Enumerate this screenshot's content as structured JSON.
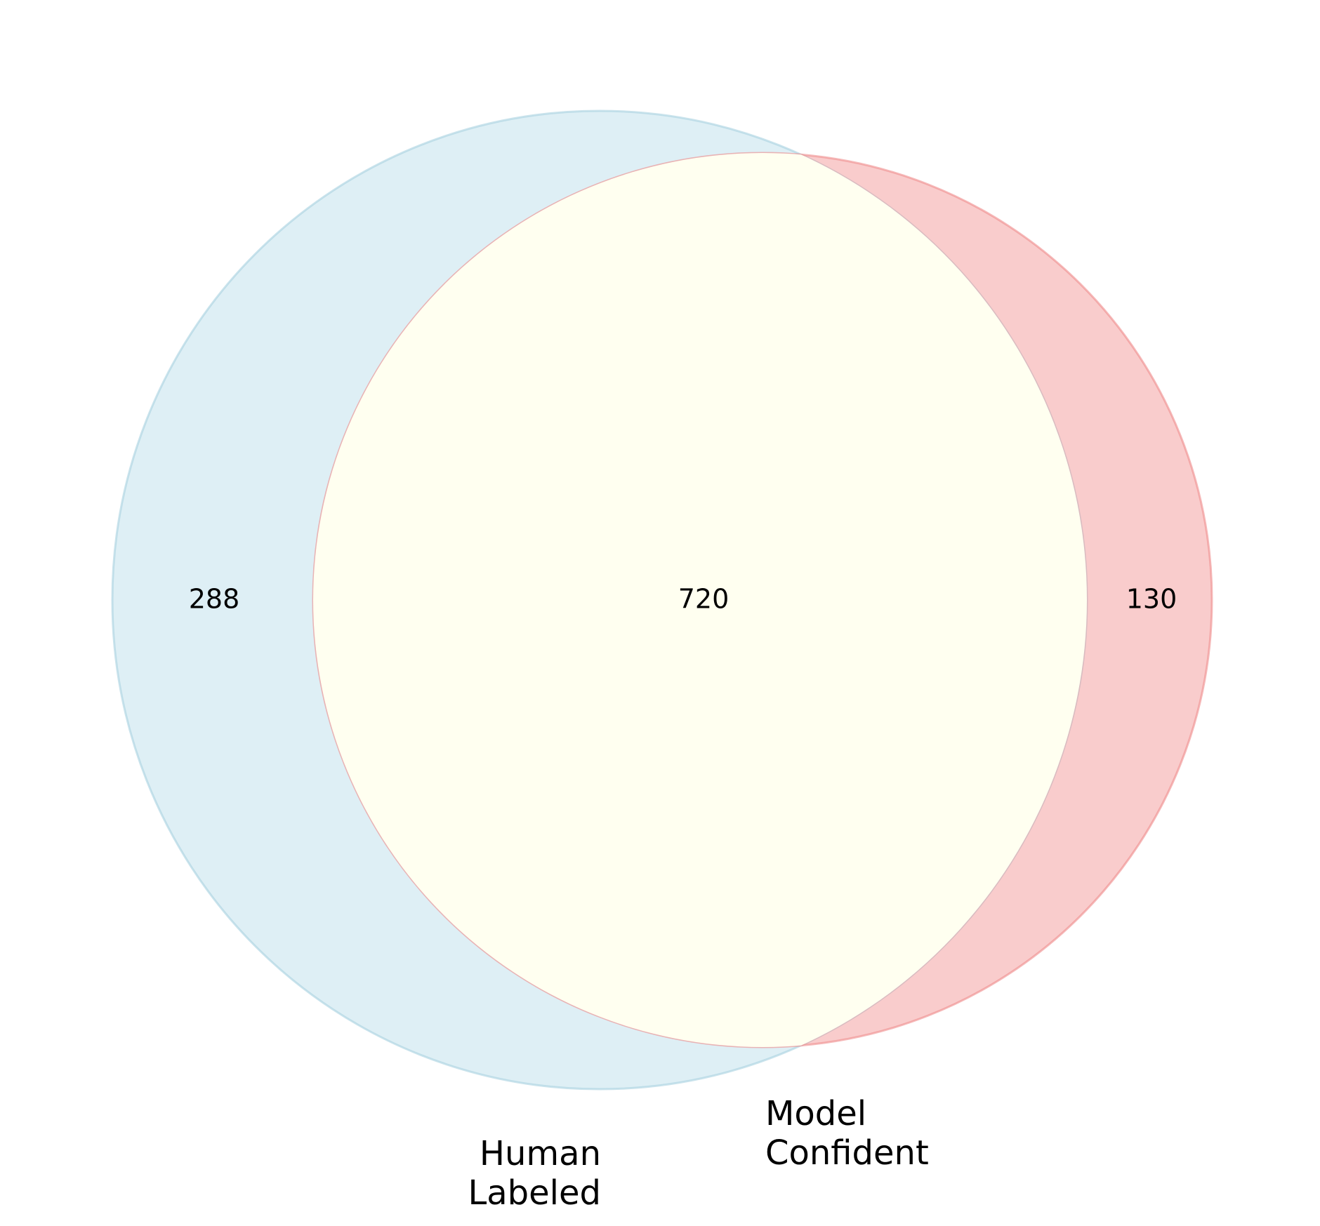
{
  "sets": [
    {
      "name": "Human Labeled",
      "label_lines": [
        "Human",
        "Labeled"
      ],
      "fill": "#add8e6",
      "stroke": "#a6d0e0"
    },
    {
      "name": "Model Confident",
      "label_lines": [
        "Model",
        "Confident"
      ],
      "fill": "#f08080",
      "stroke": "#ee8a8a"
    }
  ],
  "regions": {
    "only_a": "288",
    "both": "720",
    "only_b": "130"
  },
  "colors": {
    "intersection": "#fffff0"
  }
}
